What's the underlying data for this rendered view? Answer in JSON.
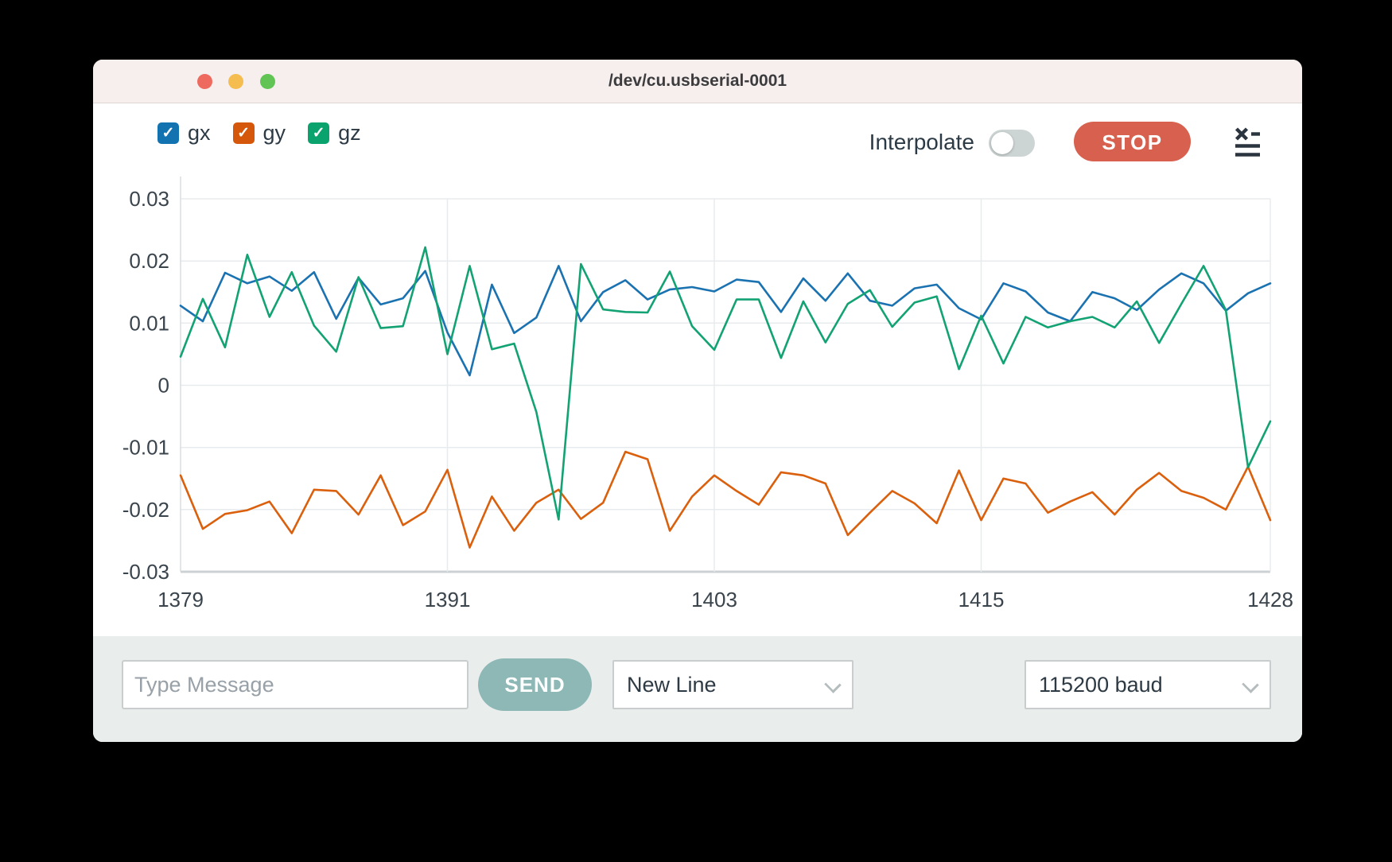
{
  "window": {
    "title": "/dev/cu.usbserial-0001"
  },
  "legend": [
    {
      "id": "gx",
      "label": "gx",
      "color": "#1273b0",
      "checked": true
    },
    {
      "id": "gy",
      "label": "gy",
      "color": "#d4570b",
      "checked": true
    },
    {
      "id": "gz",
      "label": "gz",
      "color": "#0ba36d",
      "checked": true
    }
  ],
  "toolbar": {
    "interpolate_label": "Interpolate",
    "interpolate_on": false,
    "stop_label": "STOP",
    "stop_color": "#d7604f"
  },
  "chart_data": {
    "type": "line",
    "x_start": 1379,
    "xlim": [
      1379,
      1428
    ],
    "ylim": [
      -0.03,
      0.03
    ],
    "x_ticks": [
      1379,
      1391,
      1403,
      1415,
      1428
    ],
    "y_ticks": [
      0.03,
      0.02,
      0.01,
      0,
      -0.01,
      -0.02,
      -0.03
    ],
    "y_tick_labels": [
      "0.03",
      "0.02",
      "0.01",
      "0",
      "-0.01",
      "-0.02",
      "-0.03"
    ],
    "grid": true,
    "legend_position": "top-left",
    "series": [
      {
        "name": "gx",
        "color": "#1b72b1",
        "values": [
          0.0128,
          0.0103,
          0.0181,
          0.0164,
          0.0175,
          0.0152,
          0.0182,
          0.0107,
          0.0173,
          0.013,
          0.014,
          0.0184,
          0.0085,
          0.0016,
          0.0162,
          0.0084,
          0.0109,
          0.0192,
          0.0103,
          0.015,
          0.0169,
          0.0138,
          0.0154,
          0.0158,
          0.0151,
          0.017,
          0.0166,
          0.0118,
          0.0172,
          0.0136,
          0.018,
          0.0136,
          0.0128,
          0.0156,
          0.0162,
          0.0124,
          0.0106,
          0.0164,
          0.0151,
          0.0117,
          0.0103,
          0.015,
          0.014,
          0.0121,
          0.0154,
          0.018,
          0.0164,
          0.012,
          0.0148,
          0.0164
        ]
      },
      {
        "name": "gy",
        "color": "#da600d",
        "values": [
          -0.0145,
          -0.0231,
          -0.0207,
          -0.0201,
          -0.0187,
          -0.0238,
          -0.0168,
          -0.017,
          -0.0208,
          -0.0145,
          -0.0225,
          -0.0203,
          -0.0136,
          -0.0261,
          -0.0179,
          -0.0234,
          -0.0189,
          -0.0168,
          -0.0215,
          -0.0189,
          -0.0107,
          -0.0119,
          -0.0234,
          -0.0179,
          -0.0145,
          -0.017,
          -0.0192,
          -0.014,
          -0.0145,
          -0.0158,
          -0.0241,
          -0.0205,
          -0.017,
          -0.019,
          -0.0222,
          -0.0137,
          -0.0217,
          -0.015,
          -0.0158,
          -0.0205,
          -0.0187,
          -0.0172,
          -0.0208,
          -0.0168,
          -0.0141,
          -0.017,
          -0.0181,
          -0.02,
          -0.0131,
          -0.0217
        ]
      },
      {
        "name": "gz",
        "color": "#13a273",
        "values": [
          0.0046,
          0.0139,
          0.0061,
          0.021,
          0.011,
          0.0182,
          0.0096,
          0.0054,
          0.0174,
          0.0092,
          0.0095,
          0.0222,
          0.005,
          0.0192,
          0.0058,
          0.0067,
          -0.0043,
          -0.0216,
          0.0195,
          0.0122,
          0.0118,
          0.0117,
          0.0183,
          0.0095,
          0.0057,
          0.0138,
          0.0138,
          0.0044,
          0.0135,
          0.0069,
          0.0131,
          0.0153,
          0.0094,
          0.0133,
          0.0143,
          0.0026,
          0.0112,
          0.0035,
          0.011,
          0.0093,
          0.0103,
          0.011,
          0.0093,
          0.0135,
          0.0068,
          0.0131,
          0.0192,
          0.0121,
          -0.0132,
          -0.0058
        ]
      }
    ]
  },
  "bottom_bar": {
    "message_placeholder": "Type Message",
    "send_label": "SEND",
    "line_ending_value": "New Line",
    "baud_value": "115200 baud"
  }
}
